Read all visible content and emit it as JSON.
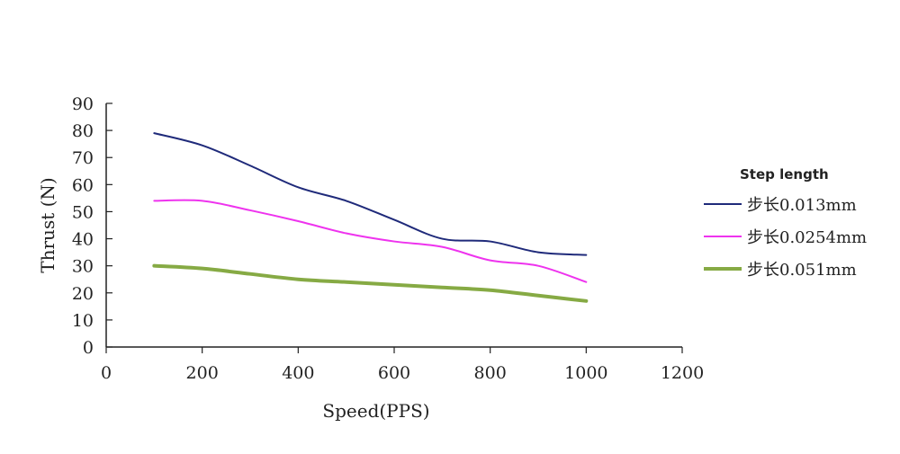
{
  "chart_data": {
    "type": "line",
    "xlabel": "Speed(PPS)",
    "ylabel": "Thrust (N)",
    "xlim": [
      0,
      1200
    ],
    "ylim": [
      0,
      90
    ],
    "xticks": [
      0,
      200,
      400,
      600,
      800,
      1000,
      1200
    ],
    "yticks": [
      0,
      10,
      20,
      30,
      40,
      50,
      60,
      70,
      80,
      90
    ],
    "grid": false,
    "legend": {
      "title": "Step length",
      "position": "right"
    },
    "x": [
      100,
      200,
      300,
      400,
      500,
      600,
      700,
      800,
      900,
      1000
    ],
    "series": [
      {
        "name": "步长0.013mm",
        "color": "#1f2a7a",
        "values": [
          79,
          74.5,
          67,
          59,
          54,
          47,
          40,
          39,
          35,
          34
        ]
      },
      {
        "name": "步长0.0254mm",
        "color": "#ee33ee",
        "values": [
          54,
          54,
          50.5,
          46.5,
          42,
          39,
          37,
          32,
          30,
          24
        ]
      },
      {
        "name": "步长0.051mm",
        "color": "#86aa44",
        "values": [
          30,
          29,
          27,
          25,
          24,
          23,
          22,
          21,
          19,
          17
        ]
      }
    ]
  }
}
